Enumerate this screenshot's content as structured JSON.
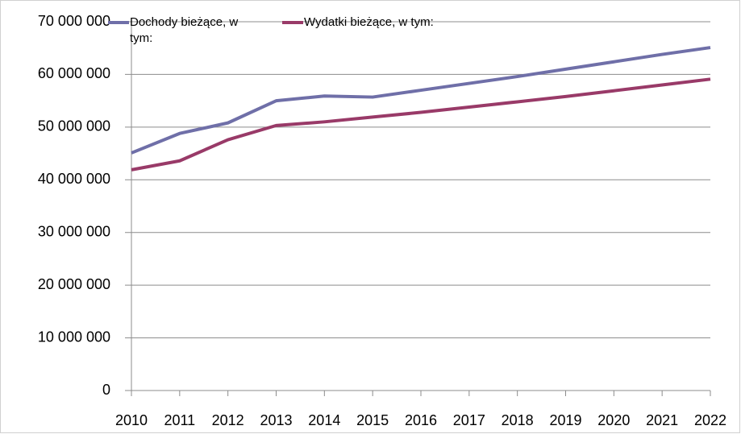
{
  "chart_data": {
    "type": "line",
    "x": [
      2010,
      2011,
      2012,
      2013,
      2014,
      2015,
      2016,
      2017,
      2018,
      2019,
      2020,
      2021,
      2022
    ],
    "xlim": [
      2010,
      2022
    ],
    "series": [
      {
        "name": "Dochody bieżące, w tym:",
        "color": "#6f6fa8",
        "values": [
          45100000,
          48800000,
          50800000,
          55000000,
          55900000,
          55700000,
          57000000,
          58300000,
          59600000,
          61000000,
          62400000,
          63800000,
          65100000
        ]
      },
      {
        "name": "Wydatki bieżące, w tym:",
        "color": "#993a68",
        "values": [
          41900000,
          43600000,
          47600000,
          50300000,
          51000000,
          51900000,
          52800000,
          53800000,
          54800000,
          55800000,
          56900000,
          58000000,
          59100000
        ]
      }
    ],
    "ylim": [
      0,
      70000000
    ],
    "yticks": [
      0,
      {
        "value": 10000000,
        "label": "10 000 000"
      },
      {
        "value": 20000000,
        "label": "20 000 000"
      },
      {
        "value": 30000000,
        "label": "30 000 000"
      },
      {
        "value": 40000000,
        "label": "40 000 000"
      },
      {
        "value": 50000000,
        "label": "50 000 000"
      },
      {
        "value": 60000000,
        "label": "60 000 000"
      },
      {
        "value": 70000000,
        "label": "70 000 000"
      }
    ],
    "grid": true,
    "legend": "top"
  }
}
